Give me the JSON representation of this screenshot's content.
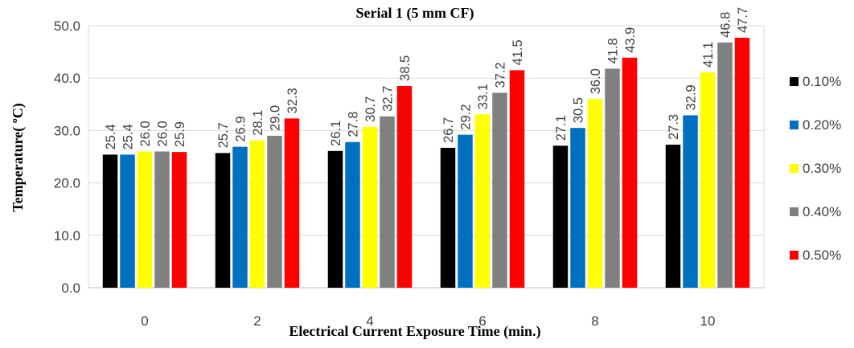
{
  "chart_data": {
    "type": "bar",
    "title": "Serial 1 (5 mm CF)",
    "xlabel": "Electrical Current Exposure Time (min.)",
    "ylabel": "Temperature( ºC)",
    "categories": [
      "0",
      "2",
      "4",
      "6",
      "8",
      "10"
    ],
    "ylim": [
      0,
      50
    ],
    "yticks": [
      "0.0",
      "10.0",
      "20.0",
      "30.0",
      "40.0",
      "50.0"
    ],
    "grid": true,
    "legend_position": "right",
    "series": [
      {
        "name": "0.10%",
        "color": "#000000",
        "values": [
          25.4,
          25.7,
          26.1,
          26.7,
          27.1,
          27.3
        ],
        "labels": [
          "25.4",
          "25.7",
          "26.1",
          "26.7",
          "27.1",
          "27.3"
        ]
      },
      {
        "name": "0.20%",
        "color": "#0070C0",
        "values": [
          25.4,
          26.9,
          27.8,
          29.2,
          30.5,
          32.9
        ],
        "labels": [
          "25.4",
          "26.9",
          "27.8",
          "29.2",
          "30.5",
          "32.9"
        ]
      },
      {
        "name": "0.30%",
        "color": "#FFFF00",
        "values": [
          26.0,
          28.1,
          30.7,
          33.1,
          36.0,
          41.1
        ],
        "labels": [
          "26.0",
          "28.1",
          "30.7",
          "33.1",
          "36.0",
          "41.1"
        ]
      },
      {
        "name": "0.40%",
        "color": "#808080",
        "values": [
          26.0,
          29.0,
          32.7,
          37.2,
          41.8,
          46.8
        ],
        "labels": [
          "26.0",
          "29.0",
          "32.7",
          "37.2",
          "41.8",
          "46.8"
        ]
      },
      {
        "name": "0.50%",
        "color": "#FF0000",
        "values": [
          25.9,
          32.3,
          38.5,
          41.5,
          43.9,
          47.7
        ],
        "labels": [
          "25.9",
          "32.3",
          "38.5",
          "41.5",
          "43.9",
          "47.7"
        ]
      }
    ]
  }
}
